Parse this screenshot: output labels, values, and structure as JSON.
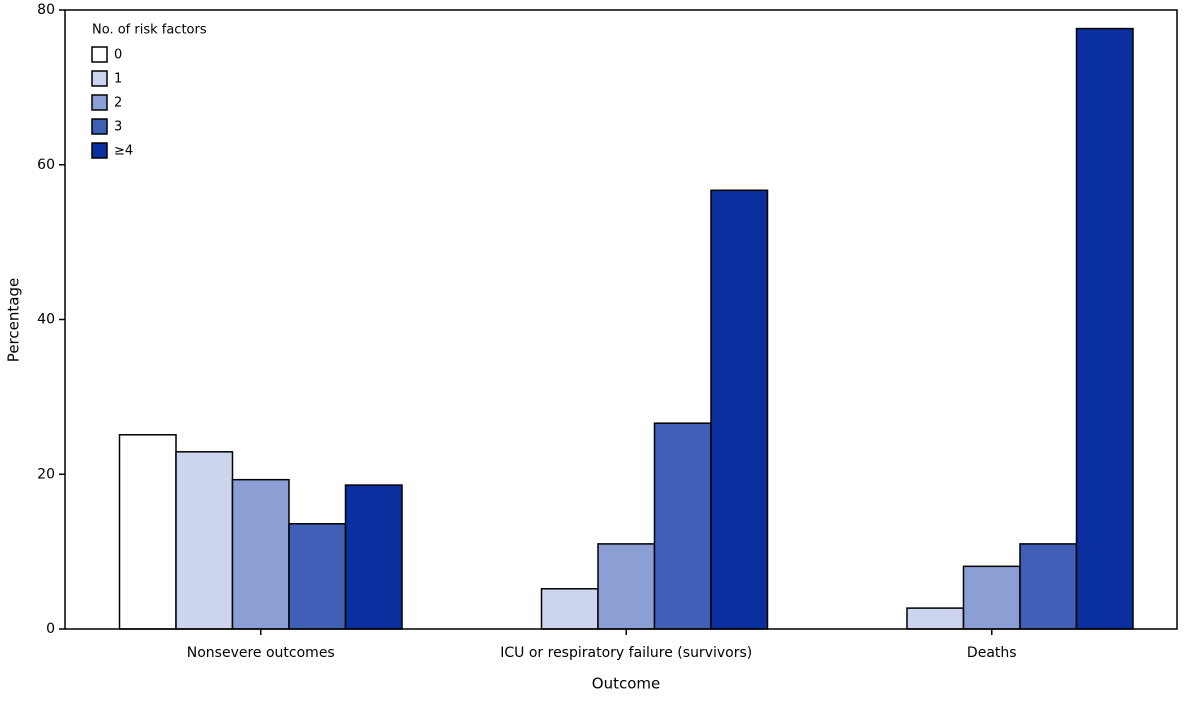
{
  "chart_data": {
    "type": "bar",
    "x_label": "Outcome",
    "y_label": "Percentage",
    "legend_title": "No. of risk factors",
    "categories": [
      "Nonsevere outcomes",
      "ICU or respiratory failure (survivors)",
      "Deaths"
    ],
    "series": [
      {
        "name": "0",
        "color": "#ffffff",
        "values": [
          25.1,
          0,
          0
        ]
      },
      {
        "name": "1",
        "color": "#cdd5ee",
        "values": [
          22.9,
          5.2,
          2.7
        ]
      },
      {
        "name": "2",
        "color": "#8b9fd4",
        "values": [
          19.3,
          11.0,
          8.1
        ]
      },
      {
        "name": "3",
        "color": "#4060b8",
        "values": [
          13.6,
          26.6,
          11.0
        ]
      },
      {
        "name": "≥4",
        "color": "#0a2f9e",
        "values": [
          18.6,
          56.7,
          77.6
        ]
      }
    ],
    "ylim": [
      0,
      80
    ],
    "yticks": [
      0,
      20,
      40,
      60,
      80
    ],
    "legend": "upper left"
  }
}
